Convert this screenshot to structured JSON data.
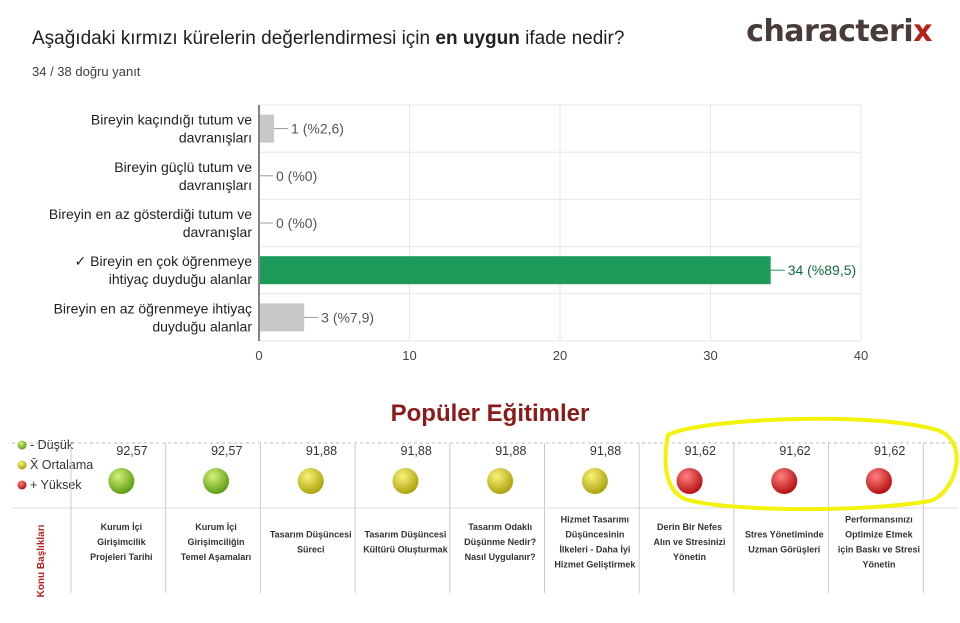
{
  "question": {
    "prefix": "Aşağıdaki kırmızı kürelerin değerlendirmesi için ",
    "bold": "en uygun",
    "suffix": " ifade nedir?"
  },
  "answer_count": "34 / 38 doğru yanıt",
  "logo": {
    "main": "characteri",
    "accent": "x"
  },
  "colors": {
    "correct": "#1e9b5a",
    "wrong": "#c8c8c8",
    "highlight": "#f2f20a",
    "title": "#8b1a1a"
  },
  "chart_data": {
    "type": "bar",
    "orientation": "horizontal",
    "categories": [
      [
        "Bireyin kaçındığı tutum ve",
        "davranışları"
      ],
      [
        "Bireyin güçlü tutum ve",
        "davranışları"
      ],
      [
        "Bireyin en az gösterdiği tutum ve",
        "davranışlar"
      ],
      [
        "✓ Bireyin en çok öğrenmeye",
        "ihtiyaç duyduğu alanlar"
      ],
      [
        "Bireyin en az öğrenmeye ihtiyaç",
        "duyduğu alanlar"
      ]
    ],
    "values": [
      1,
      0,
      0,
      34,
      3
    ],
    "value_labels": [
      "1 (%2,6)",
      "0 (%0)",
      "0 (%0)",
      "34 (%89,5)",
      "3 (%7,9)"
    ],
    "correct_index": 3,
    "xlim": [
      0,
      40
    ],
    "xticks": [
      0,
      10,
      20,
      30,
      40
    ],
    "grid": true
  },
  "popular": {
    "title": "Popüler Eğitimler",
    "legend": [
      {
        "label": "- Düşük",
        "color": "green"
      },
      {
        "label": "X̄ Ortalama",
        "color": "yellow"
      },
      {
        "label": "+ Yüksek",
        "color": "red"
      }
    ],
    "row_header": "Konu Başlıkları",
    "items": [
      {
        "score": "92,57",
        "level": "green",
        "title": [
          "Kurum İçi",
          "Girişimcilik",
          "Projeleri Tarihi"
        ]
      },
      {
        "score": "92,57",
        "level": "green",
        "title": [
          "Kurum İçi",
          "Girişimciliğin",
          "Temel Aşamaları"
        ]
      },
      {
        "score": "91,88",
        "level": "yellow",
        "title": [
          "Tasarım Düşüncesi",
          "Süreci"
        ]
      },
      {
        "score": "91,88",
        "level": "yellow",
        "title": [
          "Tasarım Düşüncesi",
          "Kültürü Oluşturmak"
        ]
      },
      {
        "score": "91,88",
        "level": "yellow",
        "title": [
          "Tasarım Odaklı",
          "Düşünme Nedir?",
          "Nasıl Uygulanır?"
        ]
      },
      {
        "score": "91,88",
        "level": "yellow",
        "title": [
          "Hizmet Tasarımı",
          "Düşüncesinin",
          "İlkeleri - Daha İyi",
          "Hizmet Geliştirmek"
        ]
      },
      {
        "score": "91,62",
        "level": "red",
        "title": [
          "Derin Bir Nefes",
          "Alın ve Stresinizi",
          "Yönetin"
        ]
      },
      {
        "score": "91,62",
        "level": "red",
        "title": [
          "Stres Yönetiminde",
          "Uzman Görüşleri"
        ]
      },
      {
        "score": "91,62",
        "level": "red",
        "title": [
          "Performansınızı",
          "Optimize Etmek",
          "için Baskı ve Stresi",
          "Yönetin"
        ]
      }
    ]
  }
}
